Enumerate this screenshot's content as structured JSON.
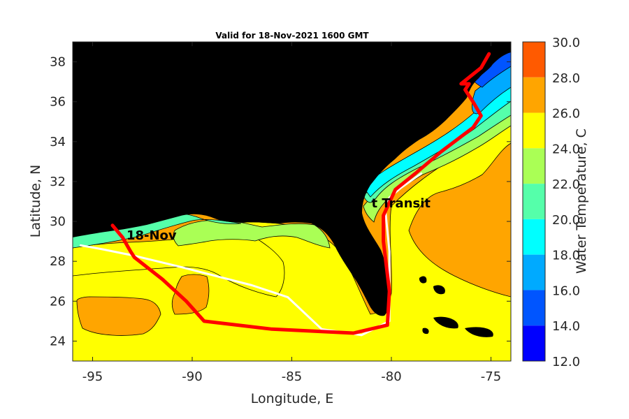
{
  "title": "Valid for 18-Nov-2021 1600 GMT",
  "x_axis": {
    "label": "Longitude, E",
    "ticks": [
      "-95",
      "-90",
      "-85",
      "-80",
      "-75"
    ],
    "tick_values": [
      -95,
      -90,
      -85,
      -80,
      -75
    ],
    "range": [
      -96,
      -74
    ]
  },
  "y_axis": {
    "label": "Latitude, N",
    "ticks": [
      "24",
      "26",
      "28",
      "30",
      "32",
      "34",
      "36",
      "38"
    ],
    "tick_values": [
      24,
      26,
      28,
      30,
      32,
      34,
      36,
      38
    ],
    "range": [
      23,
      39
    ]
  },
  "colorbar": {
    "label": "Water Temperature, C",
    "ticks": [
      "30.0",
      "28.0",
      "26.0",
      "24.0",
      "22.0",
      "20.0",
      "18.0",
      "16.0",
      "14.0",
      "12.0"
    ],
    "levels": [
      {
        "from": 28,
        "to": 30,
        "color": "#ff5a00"
      },
      {
        "from": 26,
        "to": 28,
        "color": "#ffa500"
      },
      {
        "from": 24,
        "to": 26,
        "color": "#ffff00"
      },
      {
        "from": 22,
        "to": 24,
        "color": "#aaff55"
      },
      {
        "from": 20,
        "to": 22,
        "color": "#55ffaa"
      },
      {
        "from": 18,
        "to": 20,
        "color": "#00ffff"
      },
      {
        "from": 16,
        "to": 18,
        "color": "#00aaff"
      },
      {
        "from": 14,
        "to": 16,
        "color": "#0055ff"
      },
      {
        "from": 12,
        "to": 14,
        "color": "#0000ff"
      }
    ]
  },
  "annotations": [
    {
      "text": "18-Nov",
      "lon": -93.3,
      "lat": 29.1
    },
    {
      "text": "t Transit",
      "lon": -81.0,
      "lat": 30.7
    }
  ],
  "routes": [
    {
      "color": "#ff0000",
      "points": [
        [
          -94.0,
          29.8
        ],
        [
          -93.5,
          29.2
        ],
        [
          -93.1,
          28.5
        ],
        [
          -92.9,
          28.2
        ],
        [
          -91.5,
          27.1
        ],
        [
          -90.3,
          26.0
        ],
        [
          -89.4,
          25.0
        ],
        [
          -86.0,
          24.6
        ],
        [
          -81.9,
          24.4
        ],
        [
          -80.2,
          24.8
        ],
        [
          -80.1,
          26.5
        ],
        [
          -80.4,
          29.0
        ],
        [
          -80.4,
          30.3
        ],
        [
          -79.8,
          31.6
        ],
        [
          -78.8,
          32.4
        ],
        [
          -77.5,
          33.5
        ],
        [
          -75.9,
          34.7
        ],
        [
          -75.5,
          35.3
        ],
        [
          -75.9,
          36.0
        ],
        [
          -76.3,
          36.6
        ],
        [
          -76.1,
          36.9
        ],
        [
          -76.5,
          36.9
        ],
        [
          -75.5,
          37.7
        ],
        [
          -75.1,
          38.4
        ]
      ]
    },
    {
      "color": "#ffffff",
      "points": [
        [
          -95.6,
          28.8
        ],
        [
          -94.5,
          28.6
        ],
        [
          -93.0,
          28.3
        ],
        [
          -90.5,
          27.7
        ],
        [
          -87.0,
          26.8
        ],
        [
          -85.2,
          26.2
        ],
        [
          -83.5,
          24.6
        ],
        [
          -81.5,
          24.3
        ],
        [
          -80.1,
          25.0
        ],
        [
          -80.1,
          28.5
        ],
        [
          -80.3,
          30.5
        ],
        [
          -80.1,
          31.2
        ],
        [
          -79.5,
          31.7
        ],
        [
          -78.5,
          32.4
        ]
      ]
    }
  ]
}
